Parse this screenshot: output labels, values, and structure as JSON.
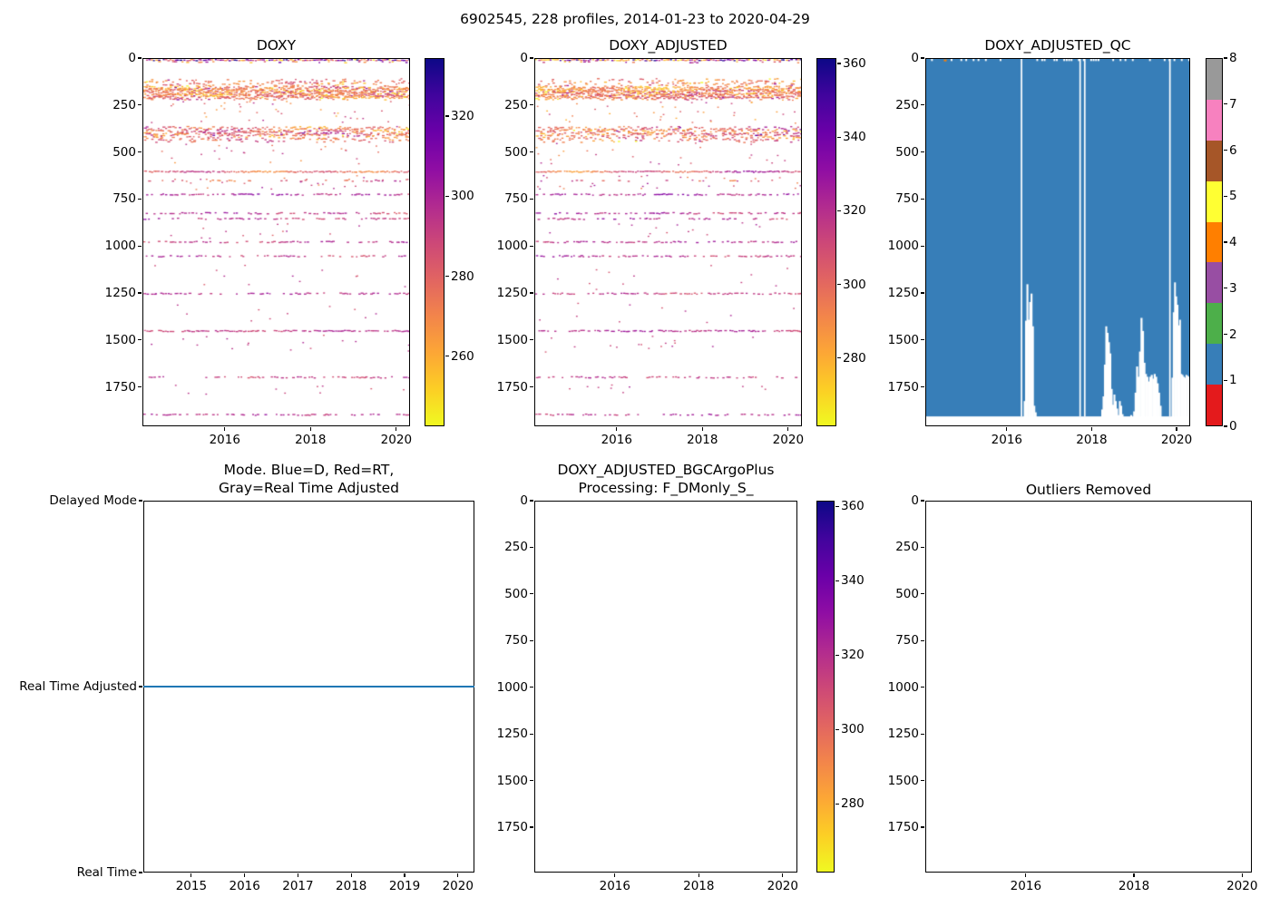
{
  "figure_title": "6902545, 228 profiles, 2014-01-23 to 2020-04-29",
  "chart_data": [
    {
      "id": "doxy",
      "type": "scatter",
      "title": "DOXY",
      "x_range": [
        2014.08,
        2020.32
      ],
      "y_range": [
        0,
        1960
      ],
      "y_axis_inverted": true,
      "xticks": [
        2016,
        2018,
        2020
      ],
      "yticks": [
        0,
        250,
        500,
        750,
        1000,
        1250,
        1500,
        1750
      ],
      "colorbar": {
        "colormap": "plasma_reversed",
        "vmin": 242.5,
        "vmax": 334.5,
        "ticks": [
          320,
          300,
          280,
          260
        ]
      },
      "seed": 7,
      "bands": [
        {
          "kind": "row",
          "depth": 3,
          "density": 0.93,
          "v": [
            246,
            334
          ],
          "mix": "wide"
        },
        {
          "kind": "row",
          "depth": 14,
          "density": 0.18,
          "v": [
            250,
            320
          ],
          "mix": "wide"
        },
        {
          "kind": "rows",
          "d0": 112,
          "d1": 146,
          "rows": 4,
          "density": 0.33,
          "v": [
            258,
            286
          ],
          "patchy": true
        },
        {
          "kind": "rows",
          "d0": 152,
          "d1": 206,
          "rows": 9,
          "density": 0.78,
          "v": [
            254,
            290
          ],
          "patchy": true
        },
        {
          "kind": "dots",
          "d0": 215,
          "d1": 345,
          "count": 42,
          "v": [
            258,
            300
          ]
        },
        {
          "kind": "rows",
          "d0": 368,
          "d1": 400,
          "rows": 4,
          "density": 0.7,
          "v": [
            258,
            298
          ],
          "patchy": true
        },
        {
          "kind": "rows",
          "d0": 404,
          "d1": 434,
          "rows": 4,
          "density": 0.38,
          "v": [
            258,
            292
          ],
          "patchy": true
        },
        {
          "kind": "dots",
          "d0": 445,
          "d1": 565,
          "count": 26,
          "v": [
            262,
            300
          ]
        },
        {
          "kind": "row",
          "depth": 600,
          "density": 0.9,
          "v": [
            266,
            306
          ]
        },
        {
          "kind": "row",
          "depth": 648,
          "density": 0.16,
          "v": [
            270,
            302
          ]
        },
        {
          "kind": "dots",
          "d0": 620,
          "d1": 695,
          "count": 30,
          "v": [
            268,
            304
          ]
        },
        {
          "kind": "row",
          "depth": 722,
          "density": 0.58,
          "v": [
            282,
            308
          ]
        },
        {
          "kind": "row",
          "depth": 822,
          "density": 0.5,
          "v": [
            284,
            306
          ]
        },
        {
          "kind": "row",
          "depth": 852,
          "density": 0.42,
          "v": [
            284,
            304
          ]
        },
        {
          "kind": "dots",
          "d0": 872,
          "d1": 960,
          "count": 14,
          "v": [
            280,
            302
          ]
        },
        {
          "kind": "row",
          "depth": 976,
          "density": 0.55,
          "v": [
            286,
            304
          ]
        },
        {
          "kind": "row",
          "depth": 1052,
          "density": 0.5,
          "v": [
            286,
            304
          ]
        },
        {
          "kind": "dots",
          "d0": 1100,
          "d1": 1235,
          "count": 12,
          "v": [
            282,
            300
          ]
        },
        {
          "kind": "row",
          "depth": 1252,
          "density": 0.55,
          "v": [
            286,
            302
          ]
        },
        {
          "kind": "dots",
          "d0": 1295,
          "d1": 1435,
          "count": 10,
          "v": [
            284,
            300
          ]
        },
        {
          "kind": "row",
          "depth": 1452,
          "density": 0.82,
          "v": [
            288,
            302
          ]
        },
        {
          "kind": "dots",
          "d0": 1475,
          "d1": 1565,
          "count": 16,
          "v": [
            284,
            300
          ]
        },
        {
          "kind": "row",
          "depth": 1700,
          "density": 0.45,
          "v": [
            286,
            302
          ]
        },
        {
          "kind": "dots",
          "d0": 1735,
          "d1": 1795,
          "count": 10,
          "v": [
            284,
            300
          ]
        },
        {
          "kind": "row",
          "depth": 1900,
          "density": 0.5,
          "v": [
            286,
            302
          ]
        }
      ]
    },
    {
      "id": "doxy_adjusted",
      "type": "scatter",
      "title": "DOXY_ADJUSTED",
      "x_range": [
        2014.08,
        2020.32
      ],
      "y_range": [
        0,
        1960
      ],
      "y_axis_inverted": true,
      "xticks": [
        2016,
        2018,
        2020
      ],
      "yticks": [
        0,
        250,
        500,
        750,
        1000,
        1250,
        1500,
        1750
      ],
      "colorbar": {
        "colormap": "plasma_reversed",
        "vmin": 261.5,
        "vmax": 361.5,
        "ticks": [
          360,
          340,
          320,
          300,
          280
        ]
      },
      "seed": 13,
      "bands": "same_as_doxy"
    },
    {
      "id": "doxy_adjusted_qc",
      "type": "qc_flags",
      "title": "DOXY_ADJUSTED_QC",
      "x_range": [
        2014.08,
        2020.32
      ],
      "y_range": [
        0,
        1960
      ],
      "y_axis_inverted": true,
      "xticks": [
        2016,
        2018,
        2020
      ],
      "yticks": [
        0,
        250,
        500,
        750,
        1000,
        1250,
        1500,
        1750
      ],
      "colorbar": {
        "ticks": [
          0,
          1,
          2,
          3,
          4,
          5,
          6,
          7,
          8
        ],
        "segment_colors_bottom_to_top": [
          "#e41a1c",
          "#377eb8",
          "#4daf4a",
          "#984ea3",
          "#ff7f00",
          "#ffff33",
          "#a65628",
          "#f781bf",
          "#999999"
        ]
      },
      "dominant_flag_color": "#377eb8",
      "seed": 21,
      "surface_gap_density": 0.3,
      "vertical_gaps": [
        2016.34,
        2017.73,
        2017.84,
        2019.86
      ],
      "bottom_gap_depth": 1912,
      "orange_mark": {
        "t": 2014.5,
        "depth": 3,
        "color": "#ff7f00"
      },
      "dropouts": [
        {
          "t0": 2016.36,
          "t1": 2016.72,
          "tops": [
            1935,
            1830,
            1400,
            1205,
            1395,
            1300,
            1255,
            1430,
            1855,
            1890,
            1935
          ]
        },
        {
          "t0": 2018.2,
          "t1": 2018.78,
          "tops": [
            1935,
            1875,
            1805,
            1635,
            1430,
            1465,
            1515,
            1575,
            1765,
            1850,
            1795,
            1830,
            1870,
            1905,
            1830,
            1855,
            1900,
            1935
          ]
        },
        {
          "t0": 2018.92,
          "t1": 2019.72,
          "tops": [
            1905,
            1935,
            1885,
            1785,
            1645,
            1700,
            1565,
            1385,
            1455,
            1625,
            1685,
            1700,
            1725,
            1700,
            1690,
            1710,
            1685,
            1700,
            1735,
            1785,
            1855,
            1920,
            1935
          ]
        },
        {
          "t0": 2019.9,
          "t1": 2020.32,
          "tops": [
            1705,
            1355,
            1195,
            1270,
            1315,
            1425,
            1395,
            1685,
            1690,
            1700,
            1705,
            1690,
            1695,
            1700
          ]
        }
      ]
    },
    {
      "id": "mode",
      "type": "line",
      "title_line1": "Mode. Blue=D, Red=RT,",
      "title_line2": "Gray=Real Time Adjusted",
      "x_range": [
        2014.1,
        2020.31
      ],
      "y_range": [
        2,
        0
      ],
      "xticks": [
        2015,
        2016,
        2017,
        2018,
        2019,
        2020
      ],
      "yticks": [
        {
          "v": 2,
          "label": "Delayed Mode"
        },
        {
          "v": 1,
          "label": "Real Time Adjusted"
        },
        {
          "v": 0,
          "label": "Real Time"
        }
      ],
      "line": {
        "value": 1,
        "value_label": "Real Time Adjusted",
        "t0": 2014.1,
        "t1": 2020.31,
        "color": "#1f77b4"
      }
    },
    {
      "id": "bgc_processing",
      "type": "empty_with_colorbar",
      "title_line1": "DOXY_ADJUSTED_BGCArgoPlus",
      "title_line2": "Processing: F_DMonly_S_",
      "x_range": [
        2014.08,
        2020.35
      ],
      "y_range": [
        0,
        1993
      ],
      "y_axis_inverted": true,
      "xticks": [
        2016,
        2018,
        2020
      ],
      "yticks": [
        0,
        250,
        500,
        750,
        1000,
        1250,
        1500,
        1750
      ],
      "colorbar": {
        "colormap": "plasma_reversed",
        "vmin": 261.5,
        "vmax": 361.5,
        "ticks": [
          360,
          340,
          320,
          300,
          280
        ]
      }
    },
    {
      "id": "outliers_removed",
      "type": "empty",
      "title": "Outliers Removed",
      "x_range": [
        2014.14,
        2020.18
      ],
      "y_range": [
        0,
        1993
      ],
      "y_axis_inverted": true,
      "xticks": [
        2016,
        2018,
        2020
      ],
      "yticks": [
        0,
        250,
        500,
        750,
        1000,
        1250,
        1500,
        1750
      ]
    }
  ]
}
